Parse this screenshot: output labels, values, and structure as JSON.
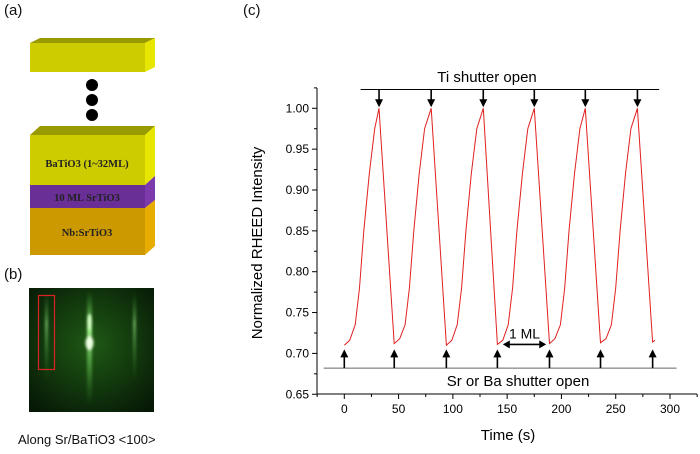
{
  "panels": {
    "a": "(a)",
    "b": "(b)",
    "c": "(c)"
  },
  "stack": {
    "layers": [
      {
        "label": "BaTiO3 (1~32ML)",
        "color": "#cccc00"
      },
      {
        "label": "10 ML SrTiO3",
        "color": "#6a2f96"
      },
      {
        "label": "Nb:SrTiO3",
        "color": "#cc9900"
      }
    ],
    "top_layer_color": "#cccc00"
  },
  "rheed": {
    "caption": "Along Sr/BaTiO3 <100>",
    "highlight_color": "#dd2222"
  },
  "chart_data": {
    "type": "line",
    "xlabel": "Time (s)",
    "ylabel": "Normalized RHEED Intensity",
    "xlim": [
      -25,
      325
    ],
    "ylim": [
      0.65,
      1.025
    ],
    "xticks": [
      0,
      50,
      100,
      150,
      200,
      250,
      300
    ],
    "yticks": [
      0.65,
      0.7,
      0.75,
      0.8,
      0.85,
      0.9,
      0.95,
      1.0
    ],
    "grid": false,
    "series": [
      {
        "color": "#e02020",
        "x": [
          0,
          5,
          10,
          14,
          18,
          23,
          28,
          32,
          46,
          51,
          56,
          60,
          64,
          69,
          74,
          80,
          94,
          99,
          104,
          108,
          112,
          117,
          122,
          128,
          141,
          146,
          151,
          155,
          159,
          164,
          169,
          175,
          189,
          194,
          199,
          203,
          207,
          212,
          217,
          222,
          236,
          241,
          246,
          250,
          254,
          259,
          264,
          270,
          284,
          286
        ],
        "y": [
          0.71,
          0.716,
          0.735,
          0.78,
          0.85,
          0.92,
          0.975,
          1.0,
          0.712,
          0.718,
          0.735,
          0.78,
          0.85,
          0.92,
          0.975,
          1.0,
          0.71,
          0.716,
          0.735,
          0.78,
          0.85,
          0.92,
          0.975,
          1.0,
          0.711,
          0.716,
          0.735,
          0.78,
          0.85,
          0.92,
          0.975,
          1.0,
          0.712,
          0.718,
          0.735,
          0.78,
          0.85,
          0.92,
          0.975,
          1.0,
          0.713,
          0.718,
          0.735,
          0.78,
          0.85,
          0.92,
          0.975,
          1.0,
          0.714,
          0.716
        ]
      }
    ],
    "annotations": {
      "top_line_label": "Ti shutter open",
      "bottom_line_label": "Sr or Ba shutter open",
      "top_line": {
        "x": [
          15,
          290
        ],
        "y": 1.023
      },
      "bottom_line": {
        "x": [
          -19,
          306
        ],
        "y": 0.682
      },
      "down_arrows_at": [
        32,
        80,
        128,
        175,
        222,
        270
      ],
      "up_arrows_at": [
        0,
        46,
        94,
        141,
        189,
        236,
        284
      ],
      "period_label": "1 ML",
      "period_arrow": {
        "x": [
          146,
          186
        ],
        "y": 0.711
      }
    }
  }
}
